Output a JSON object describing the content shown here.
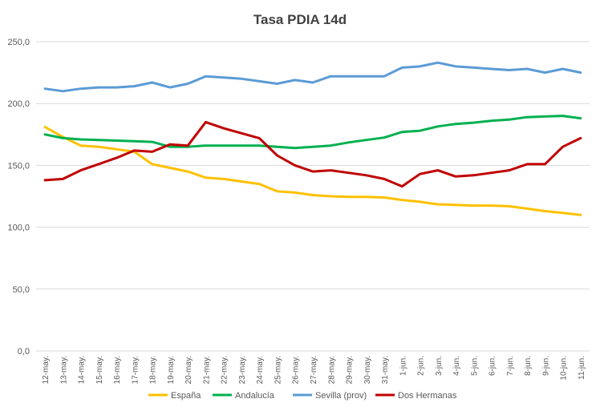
{
  "chart_data": {
    "type": "line",
    "title": "Tasa PDIA 14d",
    "xlabel": "",
    "ylabel": "",
    "ylim": [
      0,
      250
    ],
    "yticks": [
      "0,0",
      "50,0",
      "100,0",
      "150,0",
      "200,0",
      "250,0"
    ],
    "ytick_values": [
      0,
      50,
      100,
      150,
      200,
      250
    ],
    "grid": true,
    "legend_position": "bottom",
    "categories": [
      "12-may.",
      "13-may.",
      "14-may.",
      "15-may.",
      "16-may.",
      "17-may.",
      "18-may.",
      "19-may.",
      "20-may.",
      "21-may.",
      "22-may.",
      "23-may.",
      "24-may.",
      "25-may.",
      "26-may.",
      "27-may.",
      "28-may.",
      "29-may.",
      "30-may.",
      "31-may.",
      "1-jun.",
      "2-jun.",
      "3-jun.",
      "4-jun.",
      "5-jun.",
      "6-jun.",
      "7-jun.",
      "8-jun.",
      "9-jun.",
      "10-jun.",
      "11-jun."
    ],
    "series": [
      {
        "name": "España",
        "color": "#FFC000",
        "values": [
          181,
          173,
          166,
          165,
          163,
          161,
          151,
          148,
          145,
          140,
          139,
          137,
          135,
          129,
          128,
          126,
          125,
          124.5,
          124.5,
          124,
          122,
          120.5,
          118.5,
          118,
          117.5,
          117.5,
          117,
          115,
          113,
          111.5,
          110
        ]
      },
      {
        "name": "Andalucía",
        "color": "#00B050",
        "values": [
          175,
          172,
          171,
          170.5,
          170,
          169.5,
          169,
          165,
          165,
          166,
          166,
          166,
          166,
          165,
          164,
          165,
          166,
          168.5,
          170.5,
          172.5,
          177,
          178,
          181.5,
          183.5,
          184.5,
          186,
          187,
          189,
          189.5,
          190,
          188
        ]
      },
      {
        "name": "Sevilla (prov)",
        "color": "#5B9BD5",
        "values": [
          212,
          210,
          212,
          213,
          213,
          214,
          217,
          213,
          216,
          222,
          221,
          220,
          218,
          216,
          219,
          217,
          222,
          222,
          222,
          222,
          229,
          230,
          233,
          230,
          229,
          228,
          227,
          228,
          225,
          228,
          225
        ]
      },
      {
        "name": "Dos Hermanas",
        "color": "#C00000",
        "values": [
          138,
          139,
          146,
          151,
          156,
          162,
          161,
          167,
          166,
          185,
          180,
          176,
          172,
          158,
          150,
          145,
          146,
          144,
          142,
          139,
          133,
          143,
          146,
          141,
          142,
          144,
          146,
          151,
          151,
          165,
          172
        ]
      }
    ]
  }
}
